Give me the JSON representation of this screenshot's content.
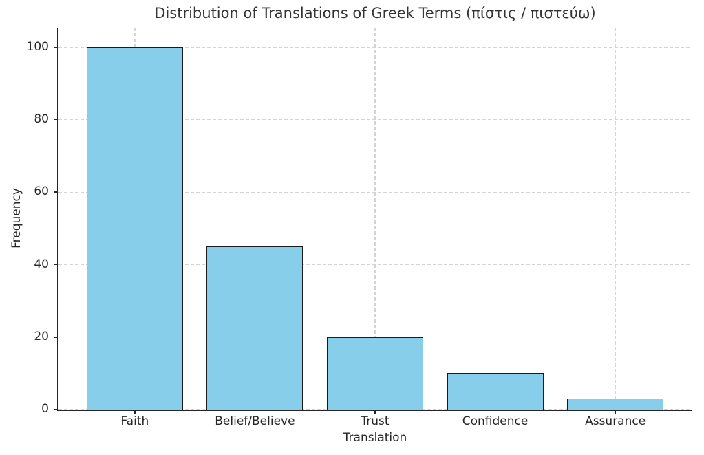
{
  "chart_data": {
    "type": "bar",
    "title": "Distribution of Translations of Greek Terms (πίστις / πιστεύω)",
    "xlabel": "Translation",
    "ylabel": "Frequency",
    "categories": [
      "Faith",
      "Belief/Believe",
      "Trust",
      "Confidence",
      "Assurance"
    ],
    "values": [
      100,
      45,
      20,
      10,
      3
    ],
    "yticks": [
      0,
      20,
      40,
      60,
      80,
      100
    ],
    "ylim": [
      0,
      105.5
    ],
    "grid": true,
    "grid_style": "dashed",
    "legend": "none",
    "bar_color": "#87CEEB",
    "bar_edge_color": "#1a1a1a",
    "grid_color": "#d4d4d4",
    "axis_color": "#262626",
    "text_color": "#333333"
  }
}
